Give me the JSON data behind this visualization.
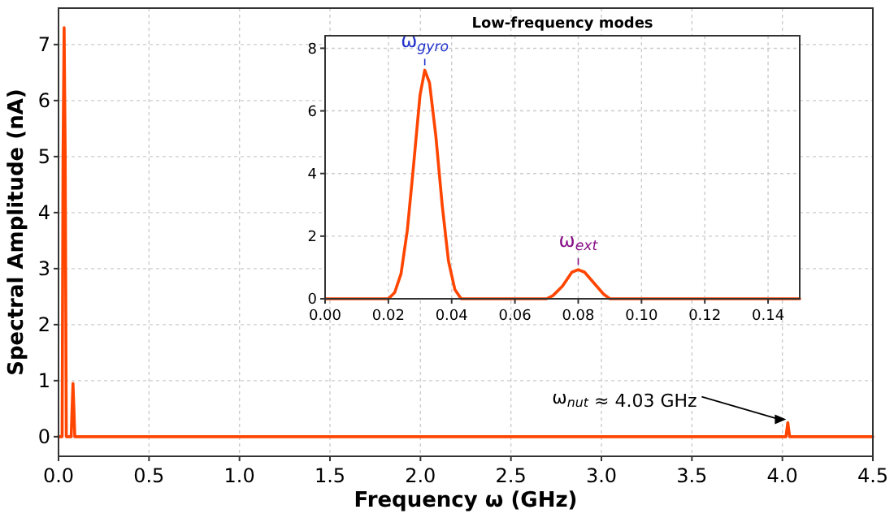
{
  "chart_data": [
    {
      "type": "line",
      "xlabel": "Frequency ω (GHz)",
      "ylabel": "Spectral Amplitude (nA)",
      "xlim": [
        0,
        4.5
      ],
      "ylim": [
        -0.35,
        7.65
      ],
      "xticks": [
        {
          "value": 0,
          "label": "0.0"
        },
        {
          "value": 0.5,
          "label": "0.5"
        },
        {
          "value": 1,
          "label": "1.0"
        },
        {
          "value": 1.5,
          "label": "1.5"
        },
        {
          "value": 2,
          "label": "2.0"
        },
        {
          "value": 2.5,
          "label": "2.5"
        },
        {
          "value": 3,
          "label": "3.0"
        },
        {
          "value": 3.5,
          "label": "3.5"
        },
        {
          "value": 4,
          "label": "4.0"
        },
        {
          "value": 4.5,
          "label": "4.5"
        }
      ],
      "yticks": [
        0,
        1,
        2,
        3,
        4,
        5,
        6,
        7
      ],
      "grid": true,
      "line_style": "solid",
      "marker": "none",
      "series": [
        {
          "color": "#ff4500",
          "x": [
            0,
            0.02,
            0.025,
            0.031,
            0.037,
            0.043,
            0.07,
            0.075,
            0.08,
            0.085,
            0.09,
            3.9,
            4.02,
            4.03,
            4.04,
            4.5
          ],
          "values": [
            0,
            0,
            5,
            7.3,
            5,
            0,
            0,
            0.5,
            0.95,
            0.5,
            0,
            0,
            0,
            0.25,
            0,
            0
          ]
        }
      ],
      "annotations": [
        {
          "text": "ω$_{nut}$ ≈ 4.03 GHz",
          "x": 4.03,
          "y": 0.25
        }
      ]
    },
    {
      "type": "line",
      "title": "Low-frequency modes",
      "xlim": [
        0,
        0.15
      ],
      "ylim": [
        0,
        8.4
      ],
      "xticks": [
        {
          "value": 0,
          "label": "0.00"
        },
        {
          "value": 0.02,
          "label": "0.02"
        },
        {
          "value": 0.04,
          "label": "0.04"
        },
        {
          "value": 0.06,
          "label": "0.06"
        },
        {
          "value": 0.08,
          "label": "0.08"
        },
        {
          "value": 0.1,
          "label": "0.10"
        },
        {
          "value": 0.12,
          "label": "0.12"
        },
        {
          "value": 0.14,
          "label": "0.14"
        }
      ],
      "yticks": [
        0,
        2,
        4,
        6,
        8
      ],
      "grid": true,
      "line_style": "solid",
      "marker": "none",
      "series": [
        {
          "color": "#ff4500",
          "x": [
            0,
            0.02,
            0.022,
            0.024,
            0.026,
            0.028,
            0.03,
            0.0315,
            0.033,
            0.035,
            0.037,
            0.039,
            0.041,
            0.043,
            0.07,
            0.072,
            0.075,
            0.078,
            0.08,
            0.082,
            0.085,
            0.088,
            0.09,
            0.15
          ],
          "values": [
            0,
            0,
            0.2,
            0.8,
            2.2,
            4.3,
            6.5,
            7.3,
            6.9,
            5.2,
            3,
            1.2,
            0.3,
            0,
            0,
            0.1,
            0.4,
            0.85,
            0.93,
            0.85,
            0.5,
            0.15,
            0,
            0
          ]
        }
      ],
      "annotations": [
        {
          "text": "ω$_{gyro}$",
          "x": 0.0315,
          "y": 7.3
        },
        {
          "text": "ω$_{ext}$",
          "x": 0.08,
          "y": 0.93
        }
      ]
    }
  ]
}
